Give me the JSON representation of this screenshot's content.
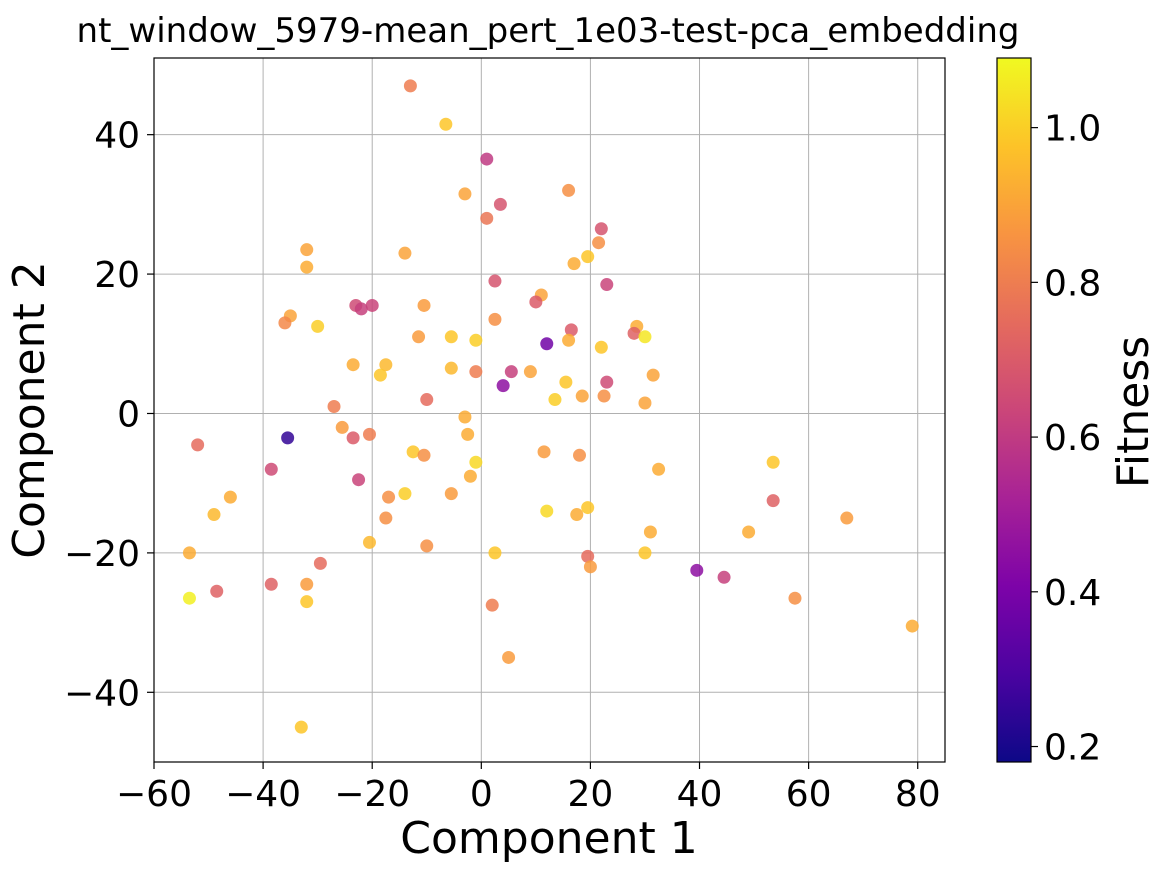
{
  "chart_data": {
    "type": "scatter",
    "title": "nt_window_5979-mean_pert_1e03-test-pca_embedding",
    "xlabel": "Component 1",
    "ylabel": "Component 2",
    "xlim": [
      -60,
      85
    ],
    "ylim": [
      -50,
      51
    ],
    "xticks": [
      -60,
      -40,
      -20,
      0,
      20,
      40,
      60,
      80
    ],
    "yticks": [
      -40,
      -20,
      0,
      20,
      40
    ],
    "xtick_labels": [
      "−60",
      "−40",
      "−20",
      "0",
      "20",
      "40",
      "60",
      "80"
    ],
    "ytick_labels": [
      "−40",
      "−20",
      "0",
      "20",
      "40"
    ],
    "grid": true,
    "colormap": "plasma",
    "colorbar": {
      "label": "Fitness",
      "range": [
        0.18,
        1.09
      ],
      "ticks": [
        0.2,
        0.4,
        0.6,
        0.8,
        1.0
      ],
      "tick_labels": [
        "0.2",
        "0.4",
        "0.6",
        "0.8",
        "1.0"
      ]
    },
    "points": [
      {
        "x": -13,
        "y": 47,
        "c": 0.8
      },
      {
        "x": -6.5,
        "y": 41.5,
        "c": 0.98
      },
      {
        "x": 1,
        "y": 36.5,
        "c": 0.6
      },
      {
        "x": 16,
        "y": 32,
        "c": 0.85
      },
      {
        "x": -3,
        "y": 31.5,
        "c": 0.9
      },
      {
        "x": 3.5,
        "y": 30,
        "c": 0.68
      },
      {
        "x": 1,
        "y": 28,
        "c": 0.78
      },
      {
        "x": 22,
        "y": 26.5,
        "c": 0.68
      },
      {
        "x": 21.5,
        "y": 24.5,
        "c": 0.85
      },
      {
        "x": -32,
        "y": 23.5,
        "c": 0.9
      },
      {
        "x": -14,
        "y": 23,
        "c": 0.9
      },
      {
        "x": 19.5,
        "y": 22.5,
        "c": 0.98
      },
      {
        "x": 17,
        "y": 21.5,
        "c": 0.92
      },
      {
        "x": -32,
        "y": 21,
        "c": 0.92
      },
      {
        "x": 2.5,
        "y": 19,
        "c": 0.68
      },
      {
        "x": 23,
        "y": 18.5,
        "c": 0.63
      },
      {
        "x": 11,
        "y": 17,
        "c": 0.9
      },
      {
        "x": 10,
        "y": 16,
        "c": 0.7
      },
      {
        "x": -23,
        "y": 15.5,
        "c": 0.65
      },
      {
        "x": -20,
        "y": 15.5,
        "c": 0.63
      },
      {
        "x": -10.5,
        "y": 15.5,
        "c": 0.88
      },
      {
        "x": -22,
        "y": 15,
        "c": 0.62
      },
      {
        "x": -35,
        "y": 14,
        "c": 0.9
      },
      {
        "x": 2.5,
        "y": 13.5,
        "c": 0.85
      },
      {
        "x": -36,
        "y": 13,
        "c": 0.83
      },
      {
        "x": 28.5,
        "y": 12.5,
        "c": 0.92
      },
      {
        "x": -30,
        "y": 12.5,
        "c": 1.0
      },
      {
        "x": 16.5,
        "y": 12,
        "c": 0.7
      },
      {
        "x": 28,
        "y": 11.5,
        "c": 0.72
      },
      {
        "x": -11.5,
        "y": 11,
        "c": 0.88
      },
      {
        "x": -5.5,
        "y": 11,
        "c": 0.98
      },
      {
        "x": 30,
        "y": 11,
        "c": 1.05
      },
      {
        "x": -1,
        "y": 10.5,
        "c": 1.0
      },
      {
        "x": 16,
        "y": 10.5,
        "c": 0.92
      },
      {
        "x": 12,
        "y": 10,
        "c": 0.38
      },
      {
        "x": 22,
        "y": 9.5,
        "c": 0.98
      },
      {
        "x": -17.5,
        "y": 7,
        "c": 0.95
      },
      {
        "x": -23.5,
        "y": 7,
        "c": 0.92
      },
      {
        "x": -5.5,
        "y": 6.5,
        "c": 0.95
      },
      {
        "x": -1,
        "y": 6,
        "c": 0.8
      },
      {
        "x": 5.5,
        "y": 6,
        "c": 0.62
      },
      {
        "x": -18.5,
        "y": 5.5,
        "c": 0.98
      },
      {
        "x": 9,
        "y": 6,
        "c": 0.9
      },
      {
        "x": 31.5,
        "y": 5.5,
        "c": 0.9
      },
      {
        "x": 23,
        "y": 4.5,
        "c": 0.65
      },
      {
        "x": 15.5,
        "y": 4.5,
        "c": 0.98
      },
      {
        "x": 4,
        "y": 4,
        "c": 0.45
      },
      {
        "x": 18.5,
        "y": 2.5,
        "c": 0.9
      },
      {
        "x": 22.5,
        "y": 2.5,
        "c": 0.85
      },
      {
        "x": 13.5,
        "y": 2,
        "c": 1.0
      },
      {
        "x": -10,
        "y": 2,
        "c": 0.75
      },
      {
        "x": 30,
        "y": 1.5,
        "c": 0.9
      },
      {
        "x": -27,
        "y": 1,
        "c": 0.8
      },
      {
        "x": -3,
        "y": -0.5,
        "c": 0.92
      },
      {
        "x": -25.5,
        "y": -2,
        "c": 0.88
      },
      {
        "x": -20.5,
        "y": -3,
        "c": 0.8
      },
      {
        "x": -2.5,
        "y": -3,
        "c": 0.92
      },
      {
        "x": -23.5,
        "y": -3.5,
        "c": 0.7
      },
      {
        "x": -35.5,
        "y": -3.5,
        "c": 0.25
      },
      {
        "x": -52,
        "y": -4.5,
        "c": 0.75
      },
      {
        "x": -12.5,
        "y": -5.5,
        "c": 0.98
      },
      {
        "x": -10.5,
        "y": -6,
        "c": 0.85
      },
      {
        "x": 11.5,
        "y": -5.5,
        "c": 0.88
      },
      {
        "x": 18,
        "y": -6,
        "c": 0.85
      },
      {
        "x": -1,
        "y": -7,
        "c": 1.02
      },
      {
        "x": 53.5,
        "y": -7,
        "c": 0.98
      },
      {
        "x": -38.5,
        "y": -8,
        "c": 0.65
      },
      {
        "x": 32.5,
        "y": -8,
        "c": 0.92
      },
      {
        "x": -2,
        "y": -9,
        "c": 0.92
      },
      {
        "x": -22.5,
        "y": -9.5,
        "c": 0.63
      },
      {
        "x": -46,
        "y": -12,
        "c": 0.92
      },
      {
        "x": -14,
        "y": -11.5,
        "c": 1.0
      },
      {
        "x": -5.5,
        "y": -11.5,
        "c": 0.88
      },
      {
        "x": -17,
        "y": -12,
        "c": 0.85
      },
      {
        "x": 53.5,
        "y": -12.5,
        "c": 0.72
      },
      {
        "x": 19.5,
        "y": -13.5,
        "c": 0.98
      },
      {
        "x": 12,
        "y": -14,
        "c": 1.02
      },
      {
        "x": -49,
        "y": -14.5,
        "c": 0.95
      },
      {
        "x": 17.5,
        "y": -14.5,
        "c": 0.92
      },
      {
        "x": 67,
        "y": -15,
        "c": 0.88
      },
      {
        "x": -17.5,
        "y": -15,
        "c": 0.85
      },
      {
        "x": 31,
        "y": -17,
        "c": 0.92
      },
      {
        "x": 49,
        "y": -17,
        "c": 0.92
      },
      {
        "x": -20.5,
        "y": -18.5,
        "c": 0.95
      },
      {
        "x": -10,
        "y": -19,
        "c": 0.85
      },
      {
        "x": 2.5,
        "y": -20,
        "c": 0.98
      },
      {
        "x": 30,
        "y": -20,
        "c": 0.98
      },
      {
        "x": -53.5,
        "y": -20,
        "c": 0.92
      },
      {
        "x": 19.5,
        "y": -20.5,
        "c": 0.75
      },
      {
        "x": -29.5,
        "y": -21.5,
        "c": 0.75
      },
      {
        "x": 20,
        "y": -22,
        "c": 0.88
      },
      {
        "x": 39.5,
        "y": -22.5,
        "c": 0.45
      },
      {
        "x": 44.5,
        "y": -23.5,
        "c": 0.62
      },
      {
        "x": -38.5,
        "y": -24.5,
        "c": 0.72
      },
      {
        "x": -32,
        "y": -24.5,
        "c": 0.88
      },
      {
        "x": -48.5,
        "y": -25.5,
        "c": 0.72
      },
      {
        "x": -53.5,
        "y": -26.5,
        "c": 1.07
      },
      {
        "x": -32,
        "y": -27,
        "c": 0.98
      },
      {
        "x": 57.5,
        "y": -26.5,
        "c": 0.85
      },
      {
        "x": 2,
        "y": -27.5,
        "c": 0.8
      },
      {
        "x": 79,
        "y": -30.5,
        "c": 0.92
      },
      {
        "x": 5,
        "y": -35,
        "c": 0.88
      },
      {
        "x": -33,
        "y": -45,
        "c": 0.98
      }
    ]
  }
}
